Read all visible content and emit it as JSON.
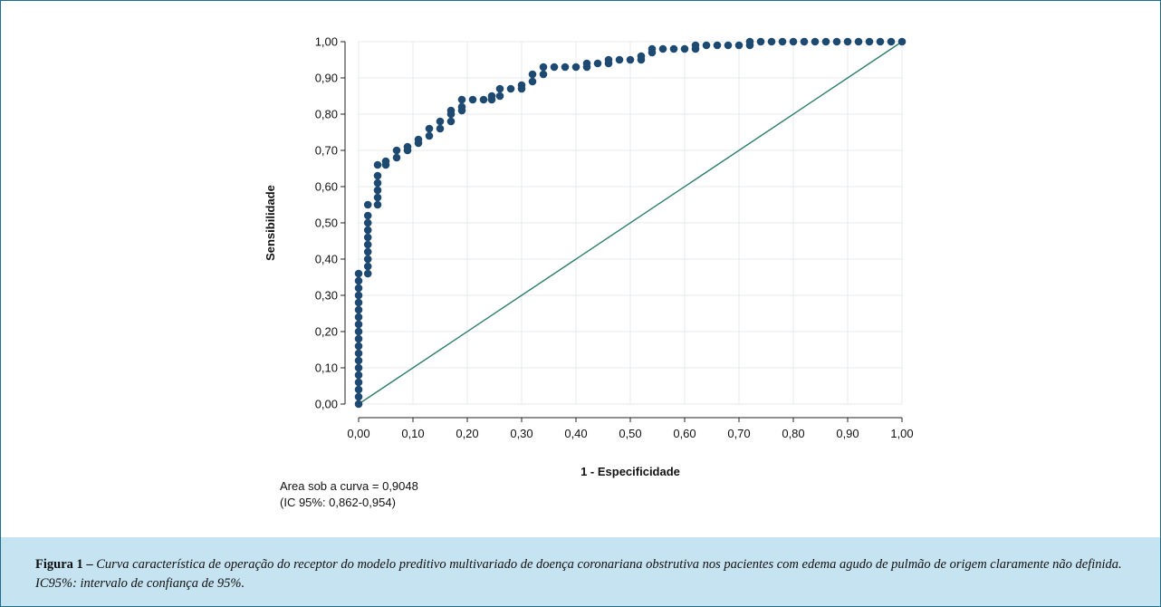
{
  "chart_data": {
    "type": "line",
    "xlabel": "1 - Especificidade",
    "ylabel": "Sensibilidade",
    "xlim": [
      0,
      1
    ],
    "ylim": [
      0,
      1
    ],
    "x_ticks": [
      "0,00",
      "0,10",
      "0,20",
      "0,30",
      "0,40",
      "0,50",
      "0,60",
      "0,70",
      "0,80",
      "0,90",
      "1,00"
    ],
    "y_ticks": [
      "0,00",
      "0,10",
      "0,20",
      "0,30",
      "0,40",
      "0,50",
      "0,60",
      "0,70",
      "0,80",
      "0,90",
      "1,00"
    ],
    "grid": true,
    "series": [
      {
        "style": "markers",
        "color": "#1e4a72",
        "points": [
          [
            0.0,
            0.0
          ],
          [
            0.0,
            0.02
          ],
          [
            0.0,
            0.04
          ],
          [
            0.0,
            0.06
          ],
          [
            0.0,
            0.08
          ],
          [
            0.0,
            0.1
          ],
          [
            0.0,
            0.12
          ],
          [
            0.0,
            0.14
          ],
          [
            0.0,
            0.16
          ],
          [
            0.0,
            0.18
          ],
          [
            0.0,
            0.2
          ],
          [
            0.0,
            0.22
          ],
          [
            0.0,
            0.24
          ],
          [
            0.0,
            0.26
          ],
          [
            0.0,
            0.28
          ],
          [
            0.0,
            0.3
          ],
          [
            0.0,
            0.32
          ],
          [
            0.0,
            0.34
          ],
          [
            0.0,
            0.36
          ],
          [
            0.017,
            0.36
          ],
          [
            0.017,
            0.38
          ],
          [
            0.017,
            0.4
          ],
          [
            0.017,
            0.42
          ],
          [
            0.017,
            0.44
          ],
          [
            0.017,
            0.46
          ],
          [
            0.017,
            0.48
          ],
          [
            0.017,
            0.5
          ],
          [
            0.017,
            0.52
          ],
          [
            0.017,
            0.55
          ],
          [
            0.035,
            0.55
          ],
          [
            0.035,
            0.57
          ],
          [
            0.035,
            0.59
          ],
          [
            0.035,
            0.61
          ],
          [
            0.035,
            0.63
          ],
          [
            0.035,
            0.66
          ],
          [
            0.05,
            0.66
          ],
          [
            0.05,
            0.67
          ],
          [
            0.07,
            0.68
          ],
          [
            0.07,
            0.7
          ],
          [
            0.09,
            0.7
          ],
          [
            0.09,
            0.71
          ],
          [
            0.11,
            0.72
          ],
          [
            0.11,
            0.73
          ],
          [
            0.13,
            0.74
          ],
          [
            0.13,
            0.76
          ],
          [
            0.15,
            0.76
          ],
          [
            0.15,
            0.78
          ],
          [
            0.17,
            0.78
          ],
          [
            0.17,
            0.8
          ],
          [
            0.17,
            0.81
          ],
          [
            0.19,
            0.81
          ],
          [
            0.19,
            0.82
          ],
          [
            0.19,
            0.84
          ],
          [
            0.21,
            0.84
          ],
          [
            0.23,
            0.84
          ],
          [
            0.245,
            0.84
          ],
          [
            0.245,
            0.85
          ],
          [
            0.26,
            0.85
          ],
          [
            0.26,
            0.87
          ],
          [
            0.28,
            0.87
          ],
          [
            0.3,
            0.87
          ],
          [
            0.3,
            0.88
          ],
          [
            0.32,
            0.89
          ],
          [
            0.32,
            0.91
          ],
          [
            0.34,
            0.91
          ],
          [
            0.34,
            0.93
          ],
          [
            0.36,
            0.93
          ],
          [
            0.38,
            0.93
          ],
          [
            0.4,
            0.93
          ],
          [
            0.42,
            0.93
          ],
          [
            0.42,
            0.94
          ],
          [
            0.44,
            0.94
          ],
          [
            0.46,
            0.94
          ],
          [
            0.46,
            0.95
          ],
          [
            0.48,
            0.95
          ],
          [
            0.5,
            0.95
          ],
          [
            0.52,
            0.95
          ],
          [
            0.52,
            0.96
          ],
          [
            0.54,
            0.97
          ],
          [
            0.54,
            0.98
          ],
          [
            0.56,
            0.98
          ],
          [
            0.58,
            0.98
          ],
          [
            0.6,
            0.98
          ],
          [
            0.62,
            0.98
          ],
          [
            0.62,
            0.99
          ],
          [
            0.64,
            0.99
          ],
          [
            0.66,
            0.99
          ],
          [
            0.68,
            0.99
          ],
          [
            0.7,
            0.99
          ],
          [
            0.72,
            0.99
          ],
          [
            0.72,
            1.0
          ],
          [
            0.74,
            1.0
          ],
          [
            0.76,
            1.0
          ],
          [
            0.78,
            1.0
          ],
          [
            0.8,
            1.0
          ],
          [
            0.82,
            1.0
          ],
          [
            0.84,
            1.0
          ],
          [
            0.86,
            1.0
          ],
          [
            0.88,
            1.0
          ],
          [
            0.9,
            1.0
          ],
          [
            0.92,
            1.0
          ],
          [
            0.94,
            1.0
          ],
          [
            0.96,
            1.0
          ],
          [
            0.98,
            1.0
          ],
          [
            1.0,
            1.0
          ]
        ]
      },
      {
        "style": "line",
        "color": "#2e7d6b",
        "points": [
          [
            0,
            0
          ],
          [
            1,
            1
          ]
        ]
      }
    ],
    "annotations": [
      "Area sob a curva = 0,9048",
      "(IC 95%: 0,862-0,954)"
    ]
  },
  "caption": {
    "lead": "Figura 1 –",
    "text": "Curva característica de operação do receptor do modelo preditivo multivariado de doença coronariana obstrutiva nos pacientes com edema agudo de pulmão de origem claramente não definida. IC95%: intervalo de confiança de 95%."
  },
  "colors": {
    "marker": "#1e4a72",
    "reference_line": "#2e7d6b",
    "grid": "#e6eaee",
    "caption_background": "#c6e3f1",
    "frame_border": "#1f6d8f"
  }
}
